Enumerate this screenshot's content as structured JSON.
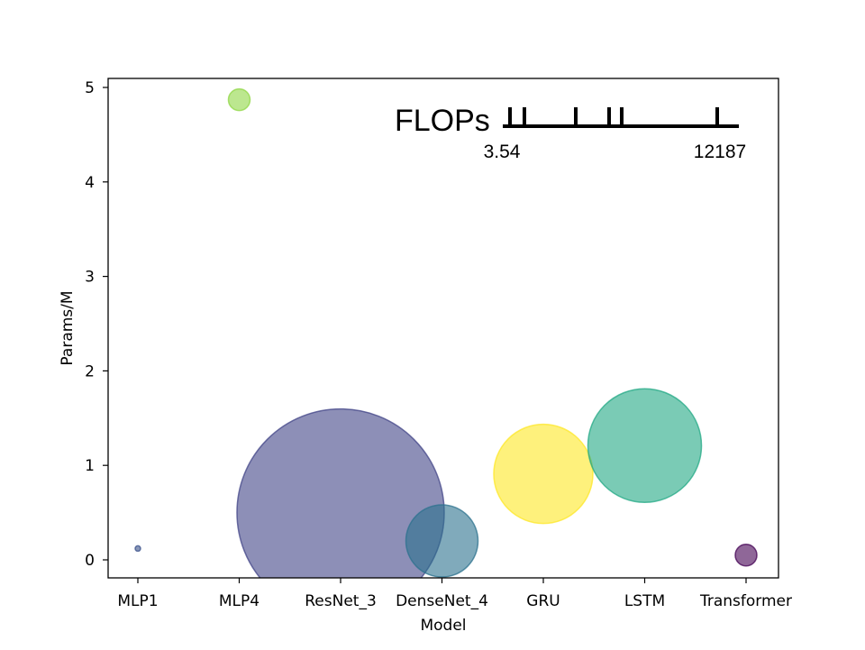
{
  "chart_data": {
    "type": "scatter",
    "title": "",
    "xlabel": "Model",
    "ylabel": "Params/M",
    "categories": [
      "MLP1",
      "MLP4",
      "ResNet_3",
      "DenseNet_4",
      "GRU",
      "LSTM",
      "Transformer"
    ],
    "ylim": [
      -0.2,
      5.1
    ],
    "yticks": [
      0,
      1,
      2,
      3,
      4,
      5
    ],
    "grid": false,
    "points": [
      {
        "model": "MLP1",
        "params": 0.12,
        "color": "#3b528b"
      },
      {
        "model": "MLP4",
        "params": 4.87,
        "color": "#8fd744"
      },
      {
        "model": "ResNet_3",
        "params": 0.5,
        "color": "#414487"
      },
      {
        "model": "DenseNet_4",
        "params": 0.2,
        "color": "#2c718e"
      },
      {
        "model": "GRU",
        "params": 0.91,
        "color": "#fde725"
      },
      {
        "model": "LSTM",
        "params": 1.21,
        "color": "#22a884"
      },
      {
        "model": "Transformer",
        "params": 0.05,
        "color": "#440154"
      }
    ],
    "size_legend": {
      "label": "FLOPs",
      "min_label": "3.54",
      "max_label": "12187",
      "placement": "top-right"
    }
  }
}
